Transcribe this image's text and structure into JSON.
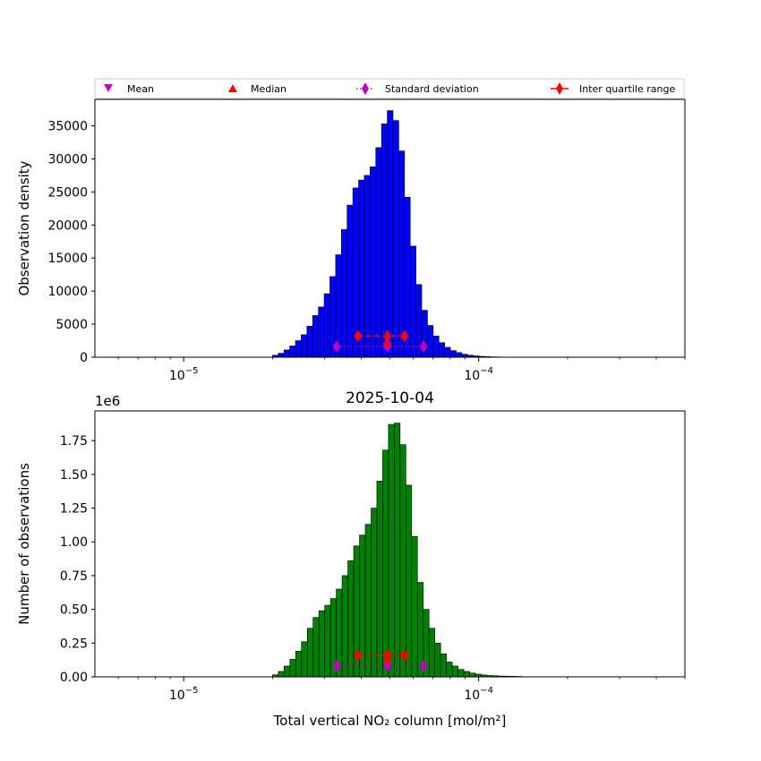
{
  "legend": {
    "placement": "top",
    "items": [
      {
        "label": "Mean",
        "color": "#bf00bf",
        "marker": "triangle-down"
      },
      {
        "label": "Median",
        "color": "#ff0000",
        "marker": "triangle-up"
      },
      {
        "label": "Standard deviation",
        "color": "#bf00bf",
        "marker": "diamond-dotted-line"
      },
      {
        "label": "Inter quartile range",
        "color": "#ff0000",
        "marker": "diamond-solid-line"
      }
    ]
  },
  "chart_data": [
    {
      "type": "bar",
      "subtype": "histogram",
      "title": "",
      "xlabel": "",
      "ylabel": "Observation density",
      "xscale": "log",
      "xlim": [
        5e-06,
        0.0005
      ],
      "ylim": [
        0,
        39000
      ],
      "yticks": [
        "0",
        "5000",
        "10000",
        "15000",
        "20000",
        "25000",
        "30000",
        "35000"
      ],
      "xticks": [
        {
          "base": "10",
          "exp": "−5"
        },
        {
          "base": "10",
          "exp": "−4"
        }
      ],
      "bar_color": "#0000ff",
      "bin_start": 2e-05,
      "bin_end": 0.00012,
      "values": [
        300,
        600,
        1100,
        1700,
        2500,
        3400,
        4700,
        6300,
        7600,
        9600,
        12200,
        15500,
        19300,
        23000,
        25600,
        26800,
        27500,
        28800,
        31700,
        35300,
        37300,
        35800,
        31200,
        24200,
        16800,
        11000,
        7100,
        4800,
        3200,
        2200,
        1500,
        1000,
        700,
        450,
        300,
        200,
        130,
        90,
        60,
        40
      ],
      "mean": 4.9e-05,
      "median": 4.9e-05,
      "std_range": [
        3.3e-05,
        6.5e-05
      ],
      "iqr_range": [
        3.9e-05,
        5.6e-05
      ],
      "marker_y": {
        "mean": 1750,
        "median": 2300,
        "std": 1600,
        "iqr": 3200
      }
    },
    {
      "type": "bar",
      "subtype": "histogram",
      "title": "2025-10-04",
      "xlabel": "Total vertical NO₂ column [mol/m²]",
      "ylabel": "Number of observations",
      "y_multiplier": "1e6",
      "xscale": "log",
      "xlim": [
        5e-06,
        0.0005
      ],
      "ylim": [
        0,
        1.97
      ],
      "yticks": [
        "0.00",
        "0.25",
        "0.50",
        "0.75",
        "1.00",
        "1.25",
        "1.50",
        "1.75"
      ],
      "xticks": [
        {
          "base": "10",
          "exp": "−5"
        },
        {
          "base": "10",
          "exp": "−4"
        }
      ],
      "bar_color": "#008000",
      "bin_start": 2e-05,
      "bin_end": 0.00014,
      "values": [
        0.015,
        0.04,
        0.08,
        0.13,
        0.19,
        0.26,
        0.36,
        0.44,
        0.49,
        0.53,
        0.58,
        0.65,
        0.75,
        0.86,
        0.97,
        1.05,
        1.13,
        1.25,
        1.45,
        1.68,
        1.87,
        1.88,
        1.72,
        1.42,
        1.04,
        0.7,
        0.5,
        0.36,
        0.25,
        0.17,
        0.11,
        0.08,
        0.055,
        0.04,
        0.028,
        0.02,
        0.014,
        0.01,
        0.008,
        0.006,
        0.005,
        0.004,
        0.003
      ],
      "mean": 4.9e-05,
      "median": 4.9e-05,
      "std_range": [
        3.3e-05,
        6.5e-05
      ],
      "iqr_range": [
        3.9e-05,
        5.6e-05
      ],
      "marker_y": {
        "mean": 0.09,
        "median": 0.13,
        "std": 0.08,
        "iqr": 0.16
      }
    }
  ]
}
